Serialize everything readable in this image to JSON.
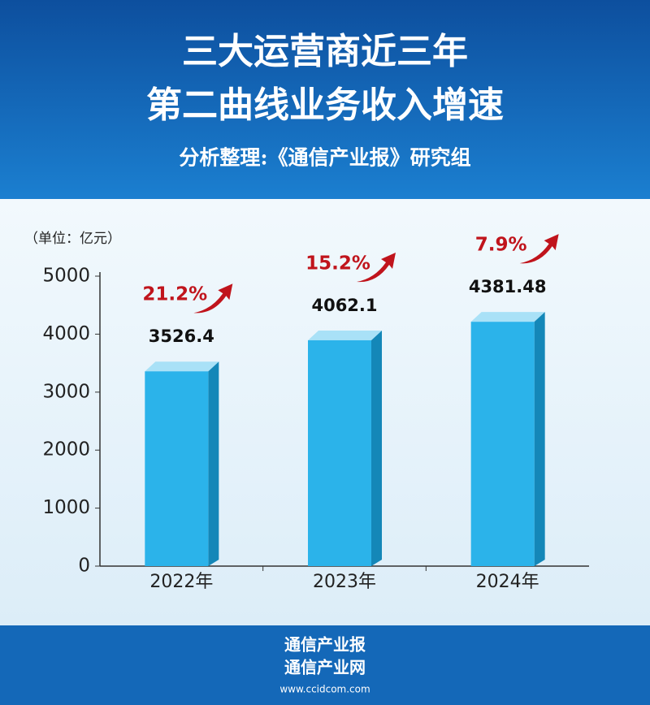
{
  "chart_data": {
    "type": "bar",
    "title": "三大运营商近三年",
    "title_line2": "第二曲线业务收入增速",
    "subtitle": "分析整理:《通信产业报》研究组",
    "unit_label": "（单位：亿元）",
    "categories": [
      "2022年",
      "2023年",
      "2024年"
    ],
    "values": [
      3526.4,
      4062.1,
      4381.48
    ],
    "color": "#2bb3ea",
    "growth_rates": {
      "values": [
        21.2,
        15.2,
        7.9
      ],
      "value_labels": [
        "21.2%",
        "15.2%",
        "7.9%"
      ],
      "color": "#c0141c"
    },
    "ylim": [
      0,
      5000
    ],
    "yticks": [
      0,
      1000,
      2000,
      3000,
      4000,
      5000
    ],
    "footer": {
      "line1": "通信产业报",
      "line2": "通信产业网",
      "url": "www.ccidcom.com"
    }
  }
}
